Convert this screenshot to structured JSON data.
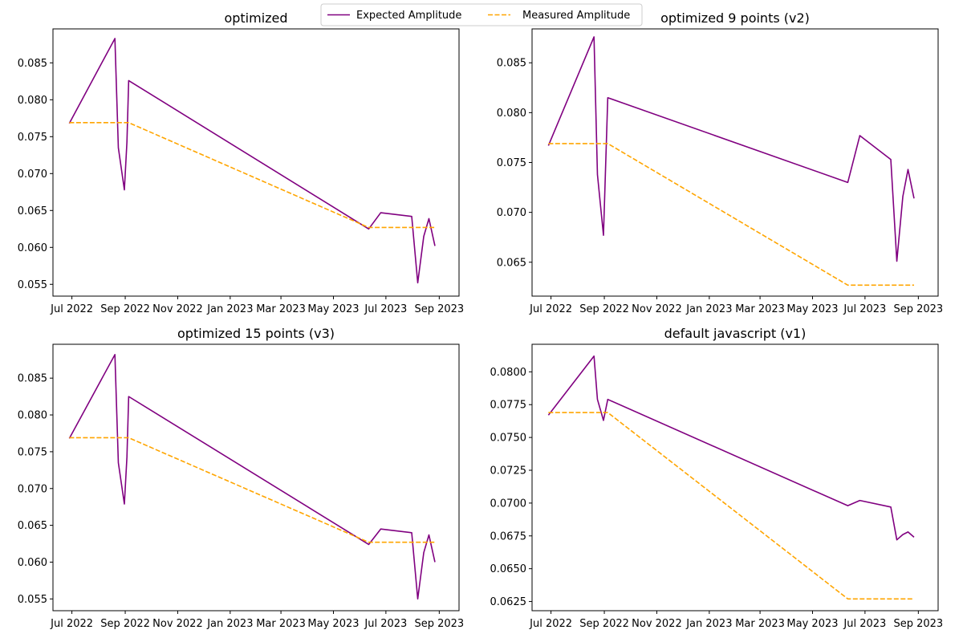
{
  "legend": {
    "placement": "top-center",
    "entries": [
      {
        "label": "Expected Amplitude",
        "color": "#800080",
        "style": "solid"
      },
      {
        "label": "Measured Amplitude",
        "color": "#FFA500",
        "style": "dashed"
      }
    ]
  },
  "chart_data": [
    {
      "type": "line",
      "title": "optimized",
      "xlabel": "",
      "ylabel": "",
      "x_type": "date",
      "xlim": [
        "2022-06-09",
        "2023-09-24"
      ],
      "ylim": [
        0.0534,
        0.0896
      ],
      "x_ticks": [
        "2022-07-01",
        "2022-09-01",
        "2022-11-01",
        "2023-01-01",
        "2023-03-01",
        "2023-05-01",
        "2023-07-01",
        "2023-09-01"
      ],
      "x_tick_labels": [
        "Jul 2022",
        "Sep 2022",
        "Nov 2022",
        "Jan 2023",
        "Mar 2023",
        "May 2023",
        "Jul 2023",
        "Sep 2023"
      ],
      "y_ticks": [
        0.055,
        0.06,
        0.065,
        0.07,
        0.075,
        0.08,
        0.085
      ],
      "y_tick_labels": [
        "0.055",
        "0.060",
        "0.065",
        "0.070",
        "0.075",
        "0.080",
        "0.085"
      ],
      "grid": false,
      "series": [
        {
          "name": "Expected Amplitude",
          "color": "#800080",
          "style": "solid",
          "points": [
            [
              "2022-06-28",
              0.0768
            ],
            [
              "2022-08-20",
              0.0883
            ],
            [
              "2022-08-24",
              0.0735
            ],
            [
              "2022-08-31",
              0.0678
            ],
            [
              "2022-09-03",
              0.0743
            ],
            [
              "2022-09-05",
              0.0826
            ],
            [
              "2023-06-11",
              0.0625
            ],
            [
              "2023-06-25",
              0.0647
            ],
            [
              "2023-07-31",
              0.0642
            ],
            [
              "2023-08-07",
              0.0552
            ],
            [
              "2023-08-14",
              0.0615
            ],
            [
              "2023-08-20",
              0.0639
            ],
            [
              "2023-08-27",
              0.0602
            ]
          ]
        },
        {
          "name": "Measured Amplitude",
          "color": "#FFA500",
          "style": "dashed",
          "points": [
            [
              "2022-06-28",
              0.0769
            ],
            [
              "2022-09-05",
              0.0769
            ],
            [
              "2023-06-11",
              0.0627
            ],
            [
              "2023-08-27",
              0.0627
            ]
          ]
        }
      ]
    },
    {
      "type": "line",
      "title": "optimized 9 points (v2)",
      "xlabel": "",
      "ylabel": "",
      "x_type": "date",
      "xlim": [
        "2022-06-09",
        "2023-09-24"
      ],
      "ylim": [
        0.0616,
        0.0884
      ],
      "x_ticks": [
        "2022-07-01",
        "2022-09-01",
        "2022-11-01",
        "2023-01-01",
        "2023-03-01",
        "2023-05-01",
        "2023-07-01",
        "2023-09-01"
      ],
      "x_tick_labels": [
        "Jul 2022",
        "Sep 2022",
        "Nov 2022",
        "Jan 2023",
        "Mar 2023",
        "May 2023",
        "Jul 2023",
        "Sep 2023"
      ],
      "y_ticks": [
        0.065,
        0.07,
        0.075,
        0.08,
        0.085
      ],
      "y_tick_labels": [
        "0.065",
        "0.070",
        "0.075",
        "0.080",
        "0.085"
      ],
      "grid": false,
      "series": [
        {
          "name": "Expected Amplitude",
          "color": "#800080",
          "style": "solid",
          "points": [
            [
              "2022-06-28",
              0.0767
            ],
            [
              "2022-08-20",
              0.0876
            ],
            [
              "2022-08-24",
              0.0738
            ],
            [
              "2022-08-31",
              0.0677
            ],
            [
              "2022-09-05",
              0.0815
            ],
            [
              "2023-06-11",
              0.073
            ],
            [
              "2023-06-25",
              0.0777
            ],
            [
              "2023-07-31",
              0.0753
            ],
            [
              "2023-08-07",
              0.0651
            ],
            [
              "2023-08-14",
              0.0716
            ],
            [
              "2023-08-20",
              0.0743
            ],
            [
              "2023-08-27",
              0.0714
            ]
          ]
        },
        {
          "name": "Measured Amplitude",
          "color": "#FFA500",
          "style": "dashed",
          "points": [
            [
              "2022-06-28",
              0.0769
            ],
            [
              "2022-09-05",
              0.0769
            ],
            [
              "2023-06-11",
              0.0627
            ],
            [
              "2023-08-27",
              0.0627
            ]
          ]
        }
      ]
    },
    {
      "type": "line",
      "title": "optimized 15 points (v3)",
      "xlabel": "",
      "ylabel": "",
      "x_type": "date",
      "xlim": [
        "2022-06-09",
        "2023-09-24"
      ],
      "ylim": [
        0.0534,
        0.0896
      ],
      "x_ticks": [
        "2022-07-01",
        "2022-09-01",
        "2022-11-01",
        "2023-01-01",
        "2023-03-01",
        "2023-05-01",
        "2023-07-01",
        "2023-09-01"
      ],
      "x_tick_labels": [
        "Jul 2022",
        "Sep 2022",
        "Nov 2022",
        "Jan 2023",
        "Mar 2023",
        "May 2023",
        "Jul 2023",
        "Sep 2023"
      ],
      "y_ticks": [
        0.055,
        0.06,
        0.065,
        0.07,
        0.075,
        0.08,
        0.085
      ],
      "y_tick_labels": [
        "0.055",
        "0.060",
        "0.065",
        "0.070",
        "0.075",
        "0.080",
        "0.085"
      ],
      "grid": false,
      "series": [
        {
          "name": "Expected Amplitude",
          "color": "#800080",
          "style": "solid",
          "points": [
            [
              "2022-06-28",
              0.0768
            ],
            [
              "2022-08-20",
              0.0882
            ],
            [
              "2022-08-24",
              0.0735
            ],
            [
              "2022-08-31",
              0.0679
            ],
            [
              "2022-09-03",
              0.0743
            ],
            [
              "2022-09-05",
              0.0825
            ],
            [
              "2023-06-11",
              0.0624
            ],
            [
              "2023-06-25",
              0.0645
            ],
            [
              "2023-07-31",
              0.064
            ],
            [
              "2023-08-07",
              0.055
            ],
            [
              "2023-08-14",
              0.0613
            ],
            [
              "2023-08-20",
              0.0637
            ],
            [
              "2023-08-27",
              0.06
            ]
          ]
        },
        {
          "name": "Measured Amplitude",
          "color": "#FFA500",
          "style": "dashed",
          "points": [
            [
              "2022-06-28",
              0.0769
            ],
            [
              "2022-09-05",
              0.0769
            ],
            [
              "2023-06-11",
              0.0627
            ],
            [
              "2023-08-27",
              0.0627
            ]
          ]
        }
      ]
    },
    {
      "type": "line",
      "title": "default javascript (v1)",
      "xlabel": "",
      "ylabel": "",
      "x_type": "date",
      "xlim": [
        "2022-06-09",
        "2023-09-24"
      ],
      "ylim": [
        0.0618,
        0.0821
      ],
      "x_ticks": [
        "2022-07-01",
        "2022-09-01",
        "2022-11-01",
        "2023-01-01",
        "2023-03-01",
        "2023-05-01",
        "2023-07-01",
        "2023-09-01"
      ],
      "x_tick_labels": [
        "Jul 2022",
        "Sep 2022",
        "Nov 2022",
        "Jan 2023",
        "Mar 2023",
        "May 2023",
        "Jul 2023",
        "Sep 2023"
      ],
      "y_ticks": [
        0.0625,
        0.065,
        0.0675,
        0.07,
        0.0725,
        0.075,
        0.0775,
        0.08
      ],
      "y_tick_labels": [
        "0.0625",
        "0.0650",
        "0.0675",
        "0.0700",
        "0.0725",
        "0.0750",
        "0.0775",
        "0.0800"
      ],
      "grid": false,
      "series": [
        {
          "name": "Expected Amplitude",
          "color": "#800080",
          "style": "solid",
          "points": [
            [
              "2022-06-28",
              0.0767
            ],
            [
              "2022-08-20",
              0.0812
            ],
            [
              "2022-08-24",
              0.0779
            ],
            [
              "2022-08-31",
              0.0763
            ],
            [
              "2022-09-05",
              0.0779
            ],
            [
              "2023-06-11",
              0.0698
            ],
            [
              "2023-06-25",
              0.0702
            ],
            [
              "2023-07-31",
              0.0697
            ],
            [
              "2023-08-07",
              0.0672
            ],
            [
              "2023-08-14",
              0.0676
            ],
            [
              "2023-08-20",
              0.0678
            ],
            [
              "2023-08-27",
              0.0674
            ]
          ]
        },
        {
          "name": "Measured Amplitude",
          "color": "#FFA500",
          "style": "dashed",
          "points": [
            [
              "2022-06-28",
              0.0769
            ],
            [
              "2022-09-05",
              0.0769
            ],
            [
              "2023-06-11",
              0.0627
            ],
            [
              "2023-08-27",
              0.0627
            ]
          ]
        }
      ]
    }
  ]
}
